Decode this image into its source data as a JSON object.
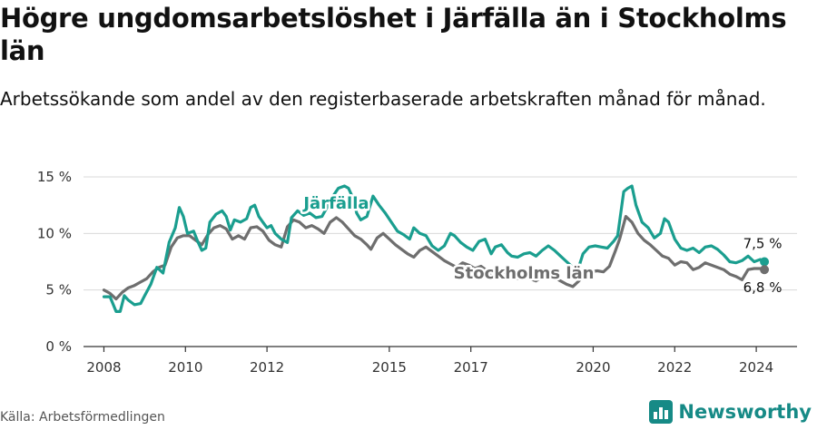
{
  "title": "Högre ungdomsarbetslöshet i Järfälla än i Stockholms län",
  "subtitle": "Arbetssökande som andel av den registerbaserade arbetskraften månad för månad.",
  "source": "Källa: Arbetsförmedlingen",
  "brand": {
    "name": "Newsworthy",
    "icon": "bar-chart-logo-icon"
  },
  "colors": {
    "jarfalla": "#1a9e8f",
    "stockholm": "#6e6e6e",
    "brand": "#168a86"
  },
  "chart_data": {
    "type": "line",
    "title": "Högre ungdomsarbetslöshet i Järfälla än i Stockholms län",
    "xlabel": "",
    "ylabel": "",
    "xlim": [
      2007.5,
      2025.0
    ],
    "ylim": [
      0,
      15
    ],
    "yticks": [
      0,
      5,
      10,
      15
    ],
    "ytick_labels": [
      "0 %",
      "5 %",
      "10 %",
      "15 %"
    ],
    "xticks": [
      2008,
      2010,
      2012,
      2015,
      2017,
      2020,
      2022,
      2024
    ],
    "xtick_labels": [
      "2008",
      "2010",
      "2012",
      "2015",
      "2017",
      "2020",
      "2022",
      "2024"
    ],
    "grid": true,
    "series": [
      {
        "name": "Järfälla",
        "label": "Järfälla",
        "end_label": "7,5 %",
        "end_value": 7.5,
        "points": [
          [
            2008.0,
            4.4
          ],
          [
            2008.15,
            4.4
          ],
          [
            2008.3,
            3.1
          ],
          [
            2008.4,
            3.1
          ],
          [
            2008.5,
            4.5
          ],
          [
            2008.6,
            4.1
          ],
          [
            2008.75,
            3.7
          ],
          [
            2008.9,
            3.8
          ],
          [
            2009.0,
            4.5
          ],
          [
            2009.15,
            5.5
          ],
          [
            2009.3,
            7.0
          ],
          [
            2009.45,
            6.5
          ],
          [
            2009.6,
            9.2
          ],
          [
            2009.75,
            10.5
          ],
          [
            2009.85,
            12.3
          ],
          [
            2009.95,
            11.5
          ],
          [
            2010.05,
            10.0
          ],
          [
            2010.2,
            10.2
          ],
          [
            2010.3,
            9.3
          ],
          [
            2010.4,
            8.5
          ],
          [
            2010.5,
            8.7
          ],
          [
            2010.6,
            11.0
          ],
          [
            2010.75,
            11.7
          ],
          [
            2010.9,
            12.0
          ],
          [
            2011.0,
            11.5
          ],
          [
            2011.1,
            10.3
          ],
          [
            2011.2,
            11.2
          ],
          [
            2011.35,
            11.0
          ],
          [
            2011.5,
            11.3
          ],
          [
            2011.6,
            12.3
          ],
          [
            2011.7,
            12.5
          ],
          [
            2011.8,
            11.5
          ],
          [
            2011.9,
            11.0
          ],
          [
            2012.0,
            10.5
          ],
          [
            2012.1,
            10.7
          ],
          [
            2012.2,
            10.0
          ],
          [
            2012.35,
            9.5
          ],
          [
            2012.5,
            9.2
          ],
          [
            2012.6,
            11.4
          ],
          [
            2012.75,
            12.0
          ],
          [
            2012.9,
            11.6
          ],
          [
            2013.05,
            11.8
          ],
          [
            2013.2,
            11.4
          ],
          [
            2013.35,
            11.5
          ],
          [
            2013.5,
            12.5
          ],
          [
            2013.6,
            13.2
          ],
          [
            2013.75,
            14.0
          ],
          [
            2013.9,
            14.2
          ],
          [
            2014.0,
            14.0
          ],
          [
            2014.1,
            13.2
          ],
          [
            2014.2,
            11.8
          ],
          [
            2014.3,
            11.2
          ],
          [
            2014.45,
            11.5
          ],
          [
            2014.6,
            13.3
          ],
          [
            2014.75,
            12.5
          ],
          [
            2014.9,
            11.8
          ],
          [
            2015.05,
            11.0
          ],
          [
            2015.2,
            10.2
          ],
          [
            2015.35,
            9.9
          ],
          [
            2015.5,
            9.5
          ],
          [
            2015.6,
            10.5
          ],
          [
            2015.75,
            10.0
          ],
          [
            2015.9,
            9.8
          ],
          [
            2016.05,
            8.9
          ],
          [
            2016.2,
            8.5
          ],
          [
            2016.35,
            8.9
          ],
          [
            2016.5,
            10.0
          ],
          [
            2016.6,
            9.8
          ],
          [
            2016.75,
            9.2
          ],
          [
            2016.9,
            8.8
          ],
          [
            2017.05,
            8.5
          ],
          [
            2017.2,
            9.3
          ],
          [
            2017.35,
            9.5
          ],
          [
            2017.5,
            8.2
          ],
          [
            2017.6,
            8.8
          ],
          [
            2017.75,
            9.0
          ],
          [
            2017.9,
            8.3
          ],
          [
            2018.0,
            8.0
          ],
          [
            2018.15,
            7.9
          ],
          [
            2018.3,
            8.2
          ],
          [
            2018.45,
            8.3
          ],
          [
            2018.6,
            8.0
          ],
          [
            2018.75,
            8.5
          ],
          [
            2018.9,
            8.9
          ],
          [
            2019.05,
            8.5
          ],
          [
            2019.2,
            8.0
          ],
          [
            2019.35,
            7.5
          ],
          [
            2019.5,
            7.0
          ],
          [
            2019.6,
            6.5
          ],
          [
            2019.75,
            8.2
          ],
          [
            2019.9,
            8.8
          ],
          [
            2020.05,
            8.9
          ],
          [
            2020.2,
            8.8
          ],
          [
            2020.35,
            8.7
          ],
          [
            2020.5,
            9.3
          ],
          [
            2020.6,
            9.8
          ],
          [
            2020.75,
            13.7
          ],
          [
            2020.85,
            14.0
          ],
          [
            2020.95,
            14.2
          ],
          [
            2021.05,
            12.5
          ],
          [
            2021.2,
            11.0
          ],
          [
            2021.35,
            10.5
          ],
          [
            2021.5,
            9.6
          ],
          [
            2021.65,
            10.0
          ],
          [
            2021.75,
            11.3
          ],
          [
            2021.85,
            11.0
          ],
          [
            2022.0,
            9.5
          ],
          [
            2022.15,
            8.7
          ],
          [
            2022.3,
            8.5
          ],
          [
            2022.45,
            8.7
          ],
          [
            2022.6,
            8.3
          ],
          [
            2022.75,
            8.8
          ],
          [
            2022.9,
            8.9
          ],
          [
            2023.05,
            8.6
          ],
          [
            2023.2,
            8.1
          ],
          [
            2023.35,
            7.5
          ],
          [
            2023.5,
            7.4
          ],
          [
            2023.65,
            7.6
          ],
          [
            2023.8,
            8.0
          ],
          [
            2023.95,
            7.5
          ],
          [
            2024.1,
            7.7
          ],
          [
            2024.2,
            7.5
          ]
        ]
      },
      {
        "name": "Stockholms län",
        "label": "Stockholms län",
        "end_label": "6,8 %",
        "end_value": 6.8,
        "points": [
          [
            2008.0,
            5.0
          ],
          [
            2008.15,
            4.7
          ],
          [
            2008.3,
            4.2
          ],
          [
            2008.45,
            4.8
          ],
          [
            2008.6,
            5.2
          ],
          [
            2008.75,
            5.4
          ],
          [
            2008.9,
            5.7
          ],
          [
            2009.05,
            6.0
          ],
          [
            2009.2,
            6.6
          ],
          [
            2009.35,
            7.0
          ],
          [
            2009.5,
            7.2
          ],
          [
            2009.65,
            8.8
          ],
          [
            2009.8,
            9.6
          ],
          [
            2009.95,
            9.8
          ],
          [
            2010.1,
            9.8
          ],
          [
            2010.25,
            9.4
          ],
          [
            2010.4,
            9.0
          ],
          [
            2010.55,
            9.9
          ],
          [
            2010.7,
            10.5
          ],
          [
            2010.85,
            10.7
          ],
          [
            2011.0,
            10.4
          ],
          [
            2011.15,
            9.5
          ],
          [
            2011.3,
            9.8
          ],
          [
            2011.45,
            9.5
          ],
          [
            2011.6,
            10.5
          ],
          [
            2011.75,
            10.6
          ],
          [
            2011.9,
            10.2
          ],
          [
            2012.05,
            9.4
          ],
          [
            2012.2,
            9.0
          ],
          [
            2012.35,
            8.8
          ],
          [
            2012.5,
            10.6
          ],
          [
            2012.65,
            11.2
          ],
          [
            2012.8,
            11.0
          ],
          [
            2012.95,
            10.5
          ],
          [
            2013.1,
            10.7
          ],
          [
            2013.25,
            10.4
          ],
          [
            2013.4,
            10.0
          ],
          [
            2013.55,
            11.0
          ],
          [
            2013.7,
            11.4
          ],
          [
            2013.85,
            11.0
          ],
          [
            2014.0,
            10.4
          ],
          [
            2014.15,
            9.8
          ],
          [
            2014.3,
            9.5
          ],
          [
            2014.45,
            9.0
          ],
          [
            2014.55,
            8.6
          ],
          [
            2014.7,
            9.6
          ],
          [
            2014.85,
            10.0
          ],
          [
            2015.0,
            9.5
          ],
          [
            2015.15,
            9.0
          ],
          [
            2015.3,
            8.6
          ],
          [
            2015.45,
            8.2
          ],
          [
            2015.6,
            7.9
          ],
          [
            2015.75,
            8.5
          ],
          [
            2015.9,
            8.8
          ],
          [
            2016.05,
            8.4
          ],
          [
            2016.2,
            8.0
          ],
          [
            2016.35,
            7.6
          ],
          [
            2016.5,
            7.3
          ],
          [
            2016.65,
            7.0
          ],
          [
            2016.8,
            7.4
          ],
          [
            2016.95,
            7.2
          ],
          [
            2017.1,
            6.9
          ],
          [
            2017.25,
            7.1
          ],
          [
            2017.4,
            6.7
          ],
          [
            2017.55,
            6.4
          ],
          [
            2017.7,
            6.8
          ],
          [
            2017.85,
            6.5
          ],
          [
            2018.0,
            6.2
          ],
          [
            2018.15,
            6.0
          ],
          [
            2018.3,
            6.3
          ],
          [
            2018.45,
            6.0
          ],
          [
            2018.6,
            5.8
          ],
          [
            2018.75,
            6.2
          ],
          [
            2018.9,
            6.4
          ],
          [
            2019.05,
            6.1
          ],
          [
            2019.2,
            5.8
          ],
          [
            2019.35,
            5.5
          ],
          [
            2019.5,
            5.3
          ],
          [
            2019.65,
            5.8
          ],
          [
            2019.8,
            6.4
          ],
          [
            2019.95,
            6.6
          ],
          [
            2020.1,
            6.7
          ],
          [
            2020.25,
            6.6
          ],
          [
            2020.4,
            7.1
          ],
          [
            2020.55,
            8.5
          ],
          [
            2020.65,
            9.5
          ],
          [
            2020.8,
            11.5
          ],
          [
            2020.95,
            11.0
          ],
          [
            2021.1,
            10.0
          ],
          [
            2021.25,
            9.4
          ],
          [
            2021.4,
            9.0
          ],
          [
            2021.55,
            8.5
          ],
          [
            2021.7,
            8.0
          ],
          [
            2021.85,
            7.8
          ],
          [
            2022.0,
            7.2
          ],
          [
            2022.15,
            7.5
          ],
          [
            2022.3,
            7.4
          ],
          [
            2022.45,
            6.8
          ],
          [
            2022.6,
            7.0
          ],
          [
            2022.75,
            7.4
          ],
          [
            2022.9,
            7.2
          ],
          [
            2023.05,
            7.0
          ],
          [
            2023.2,
            6.8
          ],
          [
            2023.35,
            6.4
          ],
          [
            2023.5,
            6.2
          ],
          [
            2023.65,
            5.9
          ],
          [
            2023.8,
            6.8
          ],
          [
            2023.95,
            6.9
          ],
          [
            2024.1,
            6.9
          ],
          [
            2024.2,
            6.8
          ]
        ]
      }
    ]
  }
}
